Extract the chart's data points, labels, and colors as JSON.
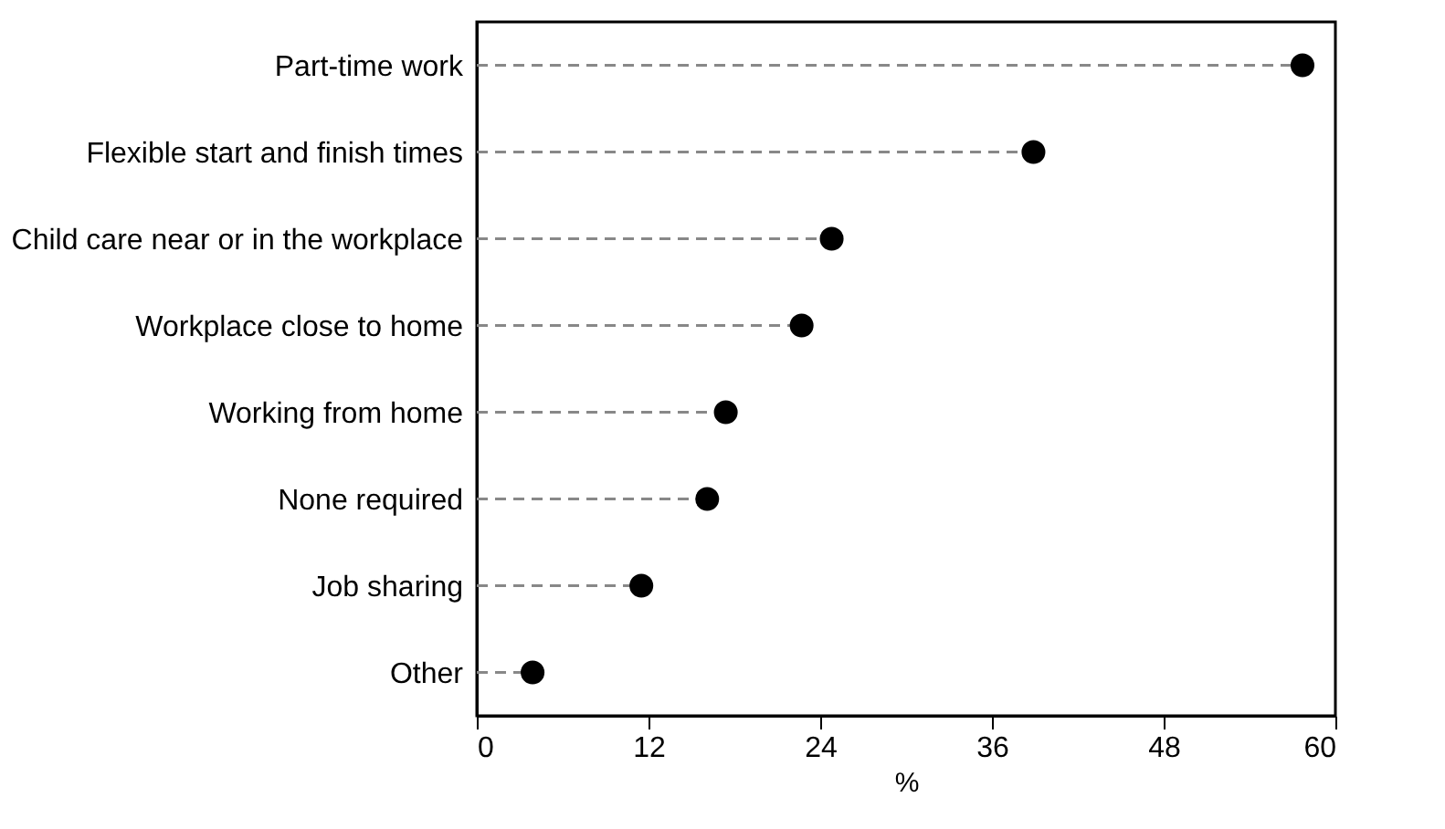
{
  "chart_data": {
    "type": "lollipop",
    "orientation": "horizontal",
    "xlabel": "%",
    "categories": [
      "Part-time work",
      "Flexible start and finish times",
      "Child care near or in the workplace",
      "Workplace close to home",
      "Working from home",
      "None required",
      "Job sharing",
      "Other"
    ],
    "values": [
      57.7,
      38.9,
      24.8,
      22.7,
      17.4,
      16.1,
      11.5,
      3.9
    ],
    "color": "#000000",
    "marker": "circle",
    "line_style": "dashed",
    "xlim": [
      0,
      60
    ],
    "xticks": [
      0,
      12,
      24,
      36,
      48,
      60
    ],
    "grid": false
  }
}
